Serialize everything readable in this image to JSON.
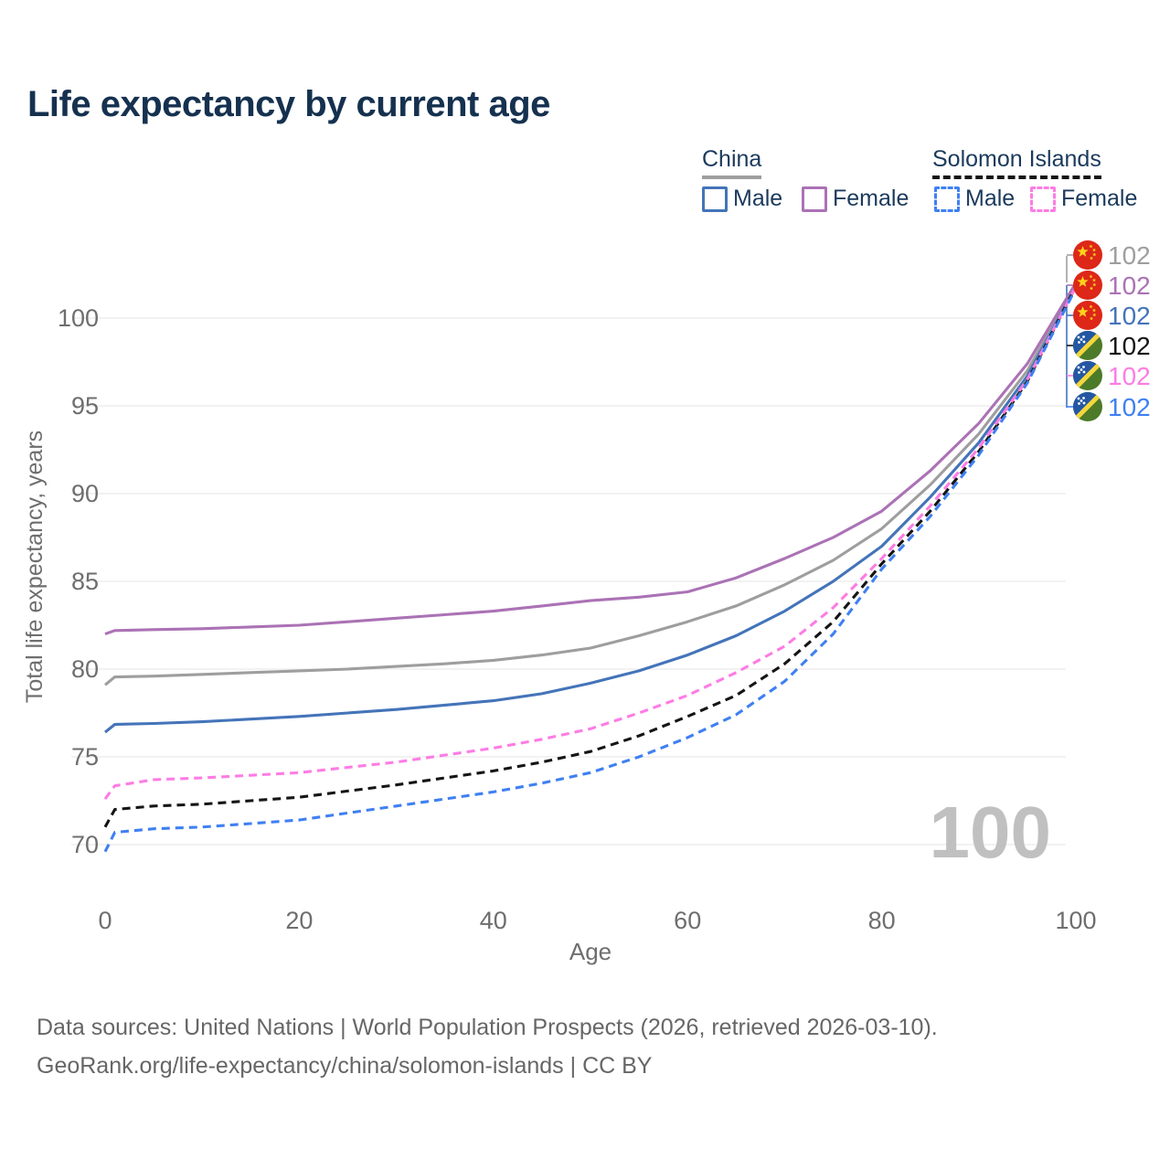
{
  "title": "Life expectancy by current age",
  "legend": {
    "groups": [
      {
        "label": "China",
        "line_color": "#9e9e9e",
        "line_style": "solid",
        "items": [
          {
            "label": "Male",
            "color": "#4474b9",
            "style": "solid"
          },
          {
            "label": "Female",
            "color": "#ab72b5",
            "style": "solid"
          }
        ]
      },
      {
        "label": "Solomon Islands",
        "line_color": "#151515",
        "line_style": "dashed",
        "items": [
          {
            "label": "Male",
            "color": "#3f80f2",
            "style": "dashed"
          },
          {
            "label": "Female",
            "color": "#fd7ce4",
            "style": "dashed"
          }
        ]
      }
    ]
  },
  "watermark": "100",
  "end_labels": [
    {
      "flag": "china",
      "value": "102",
      "color": "#9e9e9e"
    },
    {
      "flag": "china",
      "value": "102",
      "color": "#ab72b5"
    },
    {
      "flag": "china",
      "value": "102",
      "color": "#4474b9"
    },
    {
      "flag": "solomon",
      "value": "102",
      "color": "#151515"
    },
    {
      "flag": "solomon",
      "value": "102",
      "color": "#fd7ce4"
    },
    {
      "flag": "solomon",
      "value": "102",
      "color": "#3f80f2"
    }
  ],
  "footer": {
    "line1": "Data sources: United Nations | World Population Prospects (2026, retrieved 2026-03-10).",
    "line2": "GeoRank.org/life-expectancy/china/solomon-islands | CC BY"
  },
  "chart_data": {
    "type": "line",
    "title": "Life expectancy by current age",
    "xlabel": "Age",
    "ylabel": "Total life expectancy, years",
    "xlim": [
      0,
      100
    ],
    "ylim": [
      68,
      103
    ],
    "x_ticks": [
      0,
      20,
      40,
      60,
      80,
      100
    ],
    "y_ticks": [
      70,
      75,
      80,
      85,
      90,
      95,
      100
    ],
    "grid": true,
    "legend_position": "top-right",
    "x": [
      0,
      1,
      5,
      10,
      15,
      20,
      25,
      30,
      35,
      40,
      45,
      50,
      55,
      60,
      65,
      70,
      75,
      80,
      85,
      90,
      95,
      100
    ],
    "series": [
      {
        "name": "China",
        "sex": "both",
        "color": "#9e9e9e",
        "dashed": false,
        "values": [
          79.1,
          79.55,
          79.6,
          79.7,
          79.8,
          79.9,
          80.0,
          80.15,
          80.3,
          80.5,
          80.8,
          81.2,
          81.9,
          82.7,
          83.6,
          84.8,
          86.2,
          88.0,
          90.5,
          93.4,
          97.0,
          101.9
        ]
      },
      {
        "name": "China Female",
        "sex": "female",
        "color": "#ab72b5",
        "dashed": false,
        "values": [
          82.0,
          82.2,
          82.25,
          82.3,
          82.4,
          82.5,
          82.7,
          82.9,
          83.1,
          83.3,
          83.6,
          83.9,
          84.1,
          84.4,
          85.2,
          86.3,
          87.5,
          89.0,
          91.3,
          94.0,
          97.4,
          102.0
        ]
      },
      {
        "name": "China Male",
        "sex": "male",
        "color": "#4474b9",
        "dashed": false,
        "values": [
          76.4,
          76.85,
          76.9,
          77.0,
          77.15,
          77.3,
          77.5,
          77.7,
          77.95,
          78.2,
          78.6,
          79.2,
          79.9,
          80.8,
          81.9,
          83.3,
          85.0,
          87.0,
          89.8,
          92.9,
          96.7,
          101.8
        ]
      },
      {
        "name": "Solomon Islands",
        "sex": "both",
        "color": "#151515",
        "dashed": true,
        "values": [
          71.0,
          72.0,
          72.2,
          72.3,
          72.5,
          72.7,
          73.05,
          73.4,
          73.8,
          74.2,
          74.7,
          75.3,
          76.2,
          77.3,
          78.5,
          80.3,
          82.7,
          86.0,
          89.0,
          92.4,
          96.4,
          101.8
        ]
      },
      {
        "name": "Solomon Islands Female",
        "sex": "female",
        "color": "#fd7ce4",
        "dashed": true,
        "values": [
          72.6,
          73.35,
          73.7,
          73.8,
          73.95,
          74.1,
          74.4,
          74.7,
          75.1,
          75.5,
          76.0,
          76.6,
          77.5,
          78.5,
          79.8,
          81.3,
          83.5,
          86.3,
          89.3,
          92.6,
          96.5,
          101.8
        ]
      },
      {
        "name": "Solomon Islands Male",
        "sex": "male",
        "color": "#3f80f2",
        "dashed": true,
        "values": [
          69.6,
          70.7,
          70.9,
          71.0,
          71.2,
          71.4,
          71.8,
          72.2,
          72.6,
          73.0,
          73.5,
          74.1,
          75.0,
          76.1,
          77.4,
          79.3,
          82.0,
          85.7,
          88.7,
          92.2,
          96.3,
          101.7
        ]
      }
    ]
  }
}
